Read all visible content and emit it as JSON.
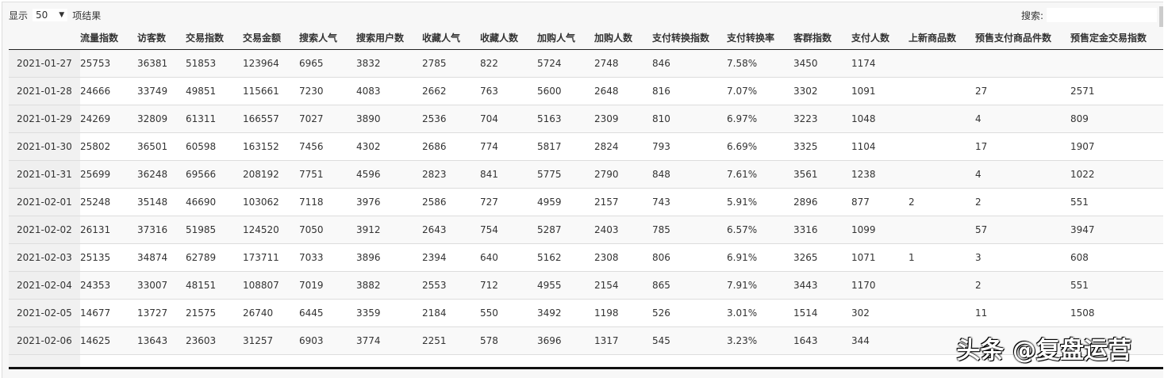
{
  "length": {
    "prefix": "显示",
    "value": "50",
    "suffix": "项结果"
  },
  "search": {
    "label": "搜索:",
    "value": ""
  },
  "columns": [
    "",
    "流量指数",
    "访客数",
    "交易指数",
    "交易金额",
    "搜索人气",
    "搜索用户数",
    "收藏人气",
    "收藏人数",
    "加购人气",
    "加购人数",
    "支付转换指数",
    "支付转换率",
    "客群指数",
    "支付人数",
    "上新商品数",
    "预售支付商品件数",
    "预售定金交易指数"
  ],
  "rows": [
    [
      "2021-01-27",
      "25753",
      "36381",
      "51853",
      "123964",
      "6965",
      "3832",
      "2785",
      "822",
      "5724",
      "2748",
      "846",
      "7.58%",
      "3450",
      "1174",
      "",
      "",
      ""
    ],
    [
      "2021-01-28",
      "24666",
      "33749",
      "49851",
      "115661",
      "7230",
      "4083",
      "2662",
      "763",
      "5600",
      "2648",
      "816",
      "7.07%",
      "3302",
      "1091",
      "",
      "27",
      "2571"
    ],
    [
      "2021-01-29",
      "24269",
      "32809",
      "61311",
      "166557",
      "7027",
      "3890",
      "2536",
      "704",
      "5163",
      "2309",
      "810",
      "6.97%",
      "3223",
      "1048",
      "",
      "4",
      "809"
    ],
    [
      "2021-01-30",
      "25802",
      "36501",
      "60598",
      "163152",
      "7456",
      "4302",
      "2686",
      "774",
      "5817",
      "2824",
      "793",
      "6.69%",
      "3325",
      "1104",
      "",
      "17",
      "1907"
    ],
    [
      "2021-01-31",
      "25699",
      "36248",
      "69566",
      "208192",
      "7751",
      "4596",
      "2823",
      "841",
      "5775",
      "2790",
      "848",
      "7.61%",
      "3561",
      "1238",
      "",
      "4",
      "1022"
    ],
    [
      "2021-02-01",
      "25248",
      "35148",
      "46690",
      "103062",
      "7118",
      "3976",
      "2586",
      "727",
      "4959",
      "2157",
      "743",
      "5.91%",
      "2896",
      "877",
      "2",
      "2",
      "551"
    ],
    [
      "2021-02-02",
      "26131",
      "37316",
      "51985",
      "124520",
      "7050",
      "3912",
      "2643",
      "754",
      "5287",
      "2403",
      "785",
      "6.57%",
      "3316",
      "1099",
      "",
      "57",
      "3947"
    ],
    [
      "2021-02-03",
      "25135",
      "34874",
      "62789",
      "173711",
      "7033",
      "3896",
      "2394",
      "640",
      "5162",
      "2308",
      "806",
      "6.91%",
      "3265",
      "1071",
      "1",
      "3",
      "608"
    ],
    [
      "2021-02-04",
      "24353",
      "33007",
      "48151",
      "108807",
      "7019",
      "3882",
      "2553",
      "712",
      "4955",
      "2154",
      "865",
      "7.91%",
      "3443",
      "1170",
      "",
      "2",
      "551"
    ],
    [
      "2021-02-05",
      "14677",
      "13727",
      "21575",
      "26740",
      "6445",
      "3359",
      "2184",
      "550",
      "3492",
      "1198",
      "526",
      "3.01%",
      "1514",
      "302",
      "",
      "11",
      "1508"
    ],
    [
      "2021-02-06",
      "14625",
      "13643",
      "23603",
      "31257",
      "6903",
      "3774",
      "2251",
      "578",
      "3696",
      "1317",
      "545",
      "3.23%",
      "1643",
      "344",
      "",
      "",
      ""
    ]
  ],
  "watermark": "头条 @复盘运营"
}
